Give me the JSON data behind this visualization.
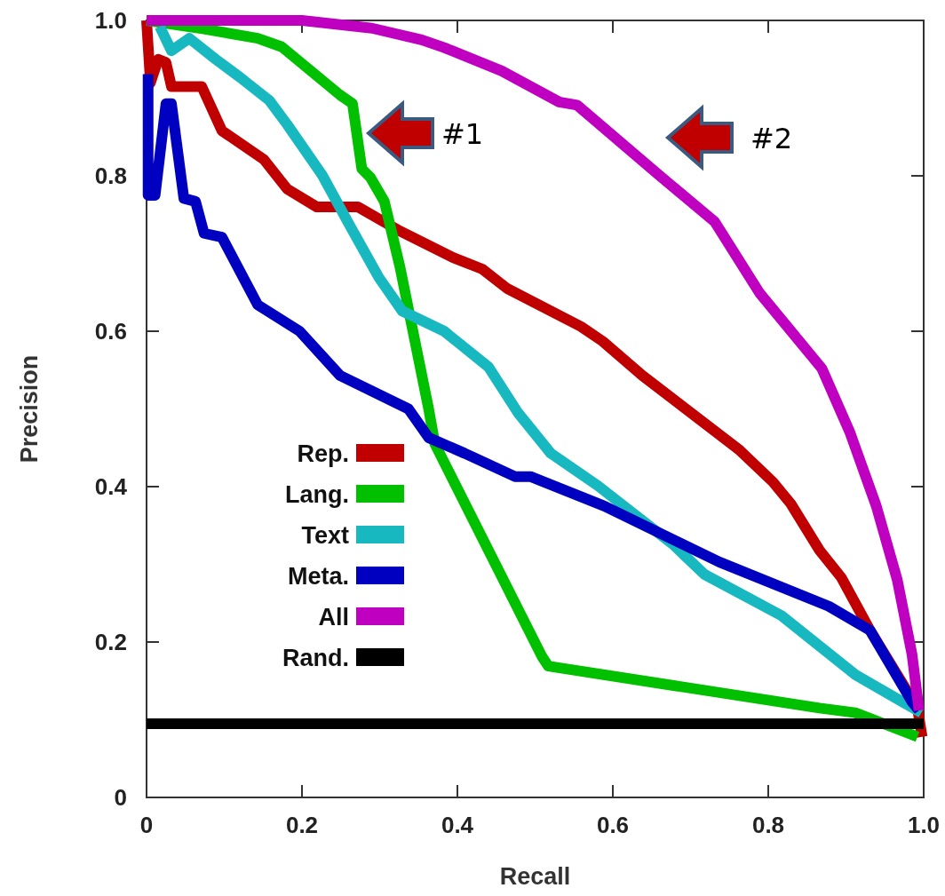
{
  "chart_data": {
    "type": "line",
    "xlabel": "Recall",
    "ylabel": "Precision",
    "xlim": [
      0,
      1
    ],
    "ylim": [
      0,
      1
    ],
    "xticks": [
      0,
      0.2,
      0.4,
      0.6,
      0.8,
      {
        "value": 1,
        "label": "1.0"
      }
    ],
    "yticks": [
      0,
      0.2,
      0.4,
      0.6,
      0.8,
      {
        "value": 1,
        "label": "1.0"
      }
    ],
    "grid": false,
    "legend": "bottom left",
    "marker": "none",
    "line_style": "solid",
    "annotations": [
      "#1",
      "#2"
    ],
    "series": [
      {
        "name": "Rep.",
        "color": "#c00000",
        "x": [
          0,
          0.005,
          0.015,
          0.025,
          0.032,
          0.071,
          0.097,
          0.151,
          0.181,
          0.219,
          0.272,
          0.326,
          0.394,
          0.432,
          0.464,
          0.559,
          0.587,
          0.638,
          0.763,
          0.806,
          0.829,
          0.866,
          0.894,
          0.931,
          0.992,
          0.998
        ],
        "values": [
          1.0,
          0.92,
          0.95,
          0.946,
          0.915,
          0.915,
          0.858,
          0.821,
          0.783,
          0.76,
          0.76,
          0.729,
          0.695,
          0.68,
          0.655,
          0.606,
          0.587,
          0.543,
          0.447,
          0.406,
          0.378,
          0.318,
          0.283,
          0.215,
          0.115,
          0.078
        ]
      },
      {
        "name": "Lang.",
        "color": "#00c000",
        "x": [
          0,
          0.074,
          0.143,
          0.174,
          0.249,
          0.265,
          0.277,
          0.288,
          0.306,
          0.326,
          0.363,
          0.371,
          0.509,
          0.517,
          0.866,
          0.912,
          0.992
        ],
        "values": [
          1.0,
          0.989,
          0.977,
          0.966,
          0.904,
          0.893,
          0.809,
          0.798,
          0.767,
          0.683,
          0.5,
          0.455,
          0.181,
          0.169,
          0.115,
          0.109,
          0.078
        ]
      },
      {
        "name": "Text",
        "color": "#17b8c0",
        "x": [
          0.017,
          0.032,
          0.055,
          0.089,
          0.12,
          0.158,
          0.181,
          0.226,
          0.261,
          0.299,
          0.329,
          0.383,
          0.44,
          0.478,
          0.52,
          0.581,
          0.677,
          0.718,
          0.817,
          0.912,
          0.997
        ],
        "values": [
          0.992,
          0.961,
          0.977,
          0.95,
          0.927,
          0.897,
          0.866,
          0.801,
          0.737,
          0.669,
          0.626,
          0.6,
          0.554,
          0.495,
          0.443,
          0.401,
          0.326,
          0.287,
          0.234,
          0.158,
          0.109
        ]
      },
      {
        "name": "Meta.",
        "color": "#0000c0",
        "x": [
          0.002,
          0.002,
          0.011,
          0.025,
          0.032,
          0.048,
          0.063,
          0.074,
          0.097,
          0.143,
          0.197,
          0.249,
          0.337,
          0.363,
          0.409,
          0.474,
          0.494,
          0.589,
          0.737,
          0.878,
          0.931,
          0.985,
          0.994
        ],
        "values": [
          0.931,
          0.775,
          0.775,
          0.893,
          0.893,
          0.771,
          0.767,
          0.726,
          0.721,
          0.634,
          0.6,
          0.543,
          0.5,
          0.463,
          0.443,
          0.413,
          0.413,
          0.375,
          0.303,
          0.246,
          0.215,
          0.123,
          0.112
        ]
      },
      {
        "name": "All",
        "color": "#c000c0",
        "x": [
          0,
          0.2,
          0.29,
          0.354,
          0.383,
          0.457,
          0.531,
          0.554,
          0.657,
          0.731,
          0.789,
          0.869,
          0.905,
          0.939,
          0.966,
          0.985,
          0.994
        ],
        "values": [
          1.0,
          1.0,
          0.99,
          0.975,
          0.965,
          0.935,
          0.895,
          0.891,
          0.803,
          0.741,
          0.649,
          0.552,
          0.47,
          0.375,
          0.28,
          0.184,
          0.112
        ]
      },
      {
        "name": "Rand.",
        "color": "#000000",
        "x": [
          0,
          1
        ],
        "values": [
          0.095,
          0.095
        ]
      }
    ]
  }
}
